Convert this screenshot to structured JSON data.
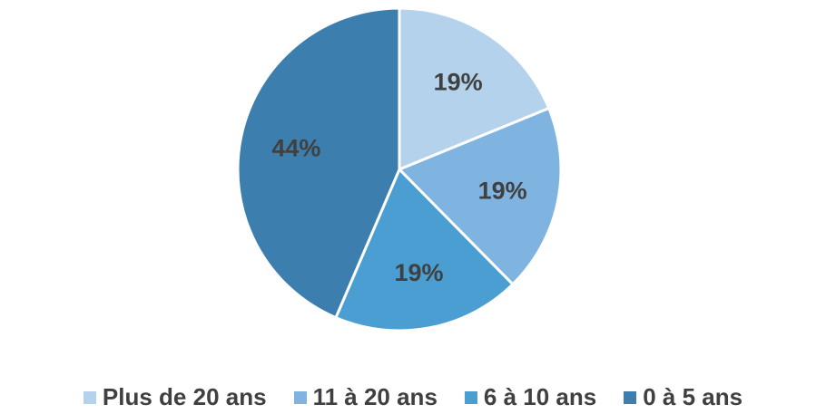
{
  "chart_data": {
    "type": "pie",
    "slices": [
      {
        "label": "Plus de 20 ans",
        "value": 19,
        "value_label": "19%",
        "color": "#b4d2ec"
      },
      {
        "label": "11 à 20 ans",
        "value": 19,
        "value_label": "19%",
        "color": "#7fb4e0"
      },
      {
        "label": "6 à 10 ans",
        "value": 19,
        "value_label": "19%",
        "color": "#4a9ed2"
      },
      {
        "label": "0 à 5 ans",
        "value": 44,
        "value_label": "44%",
        "color": "#3c7fae"
      }
    ],
    "legend_position": "bottom",
    "start_angle": "12 o'clock",
    "direction": "clockwise"
  }
}
